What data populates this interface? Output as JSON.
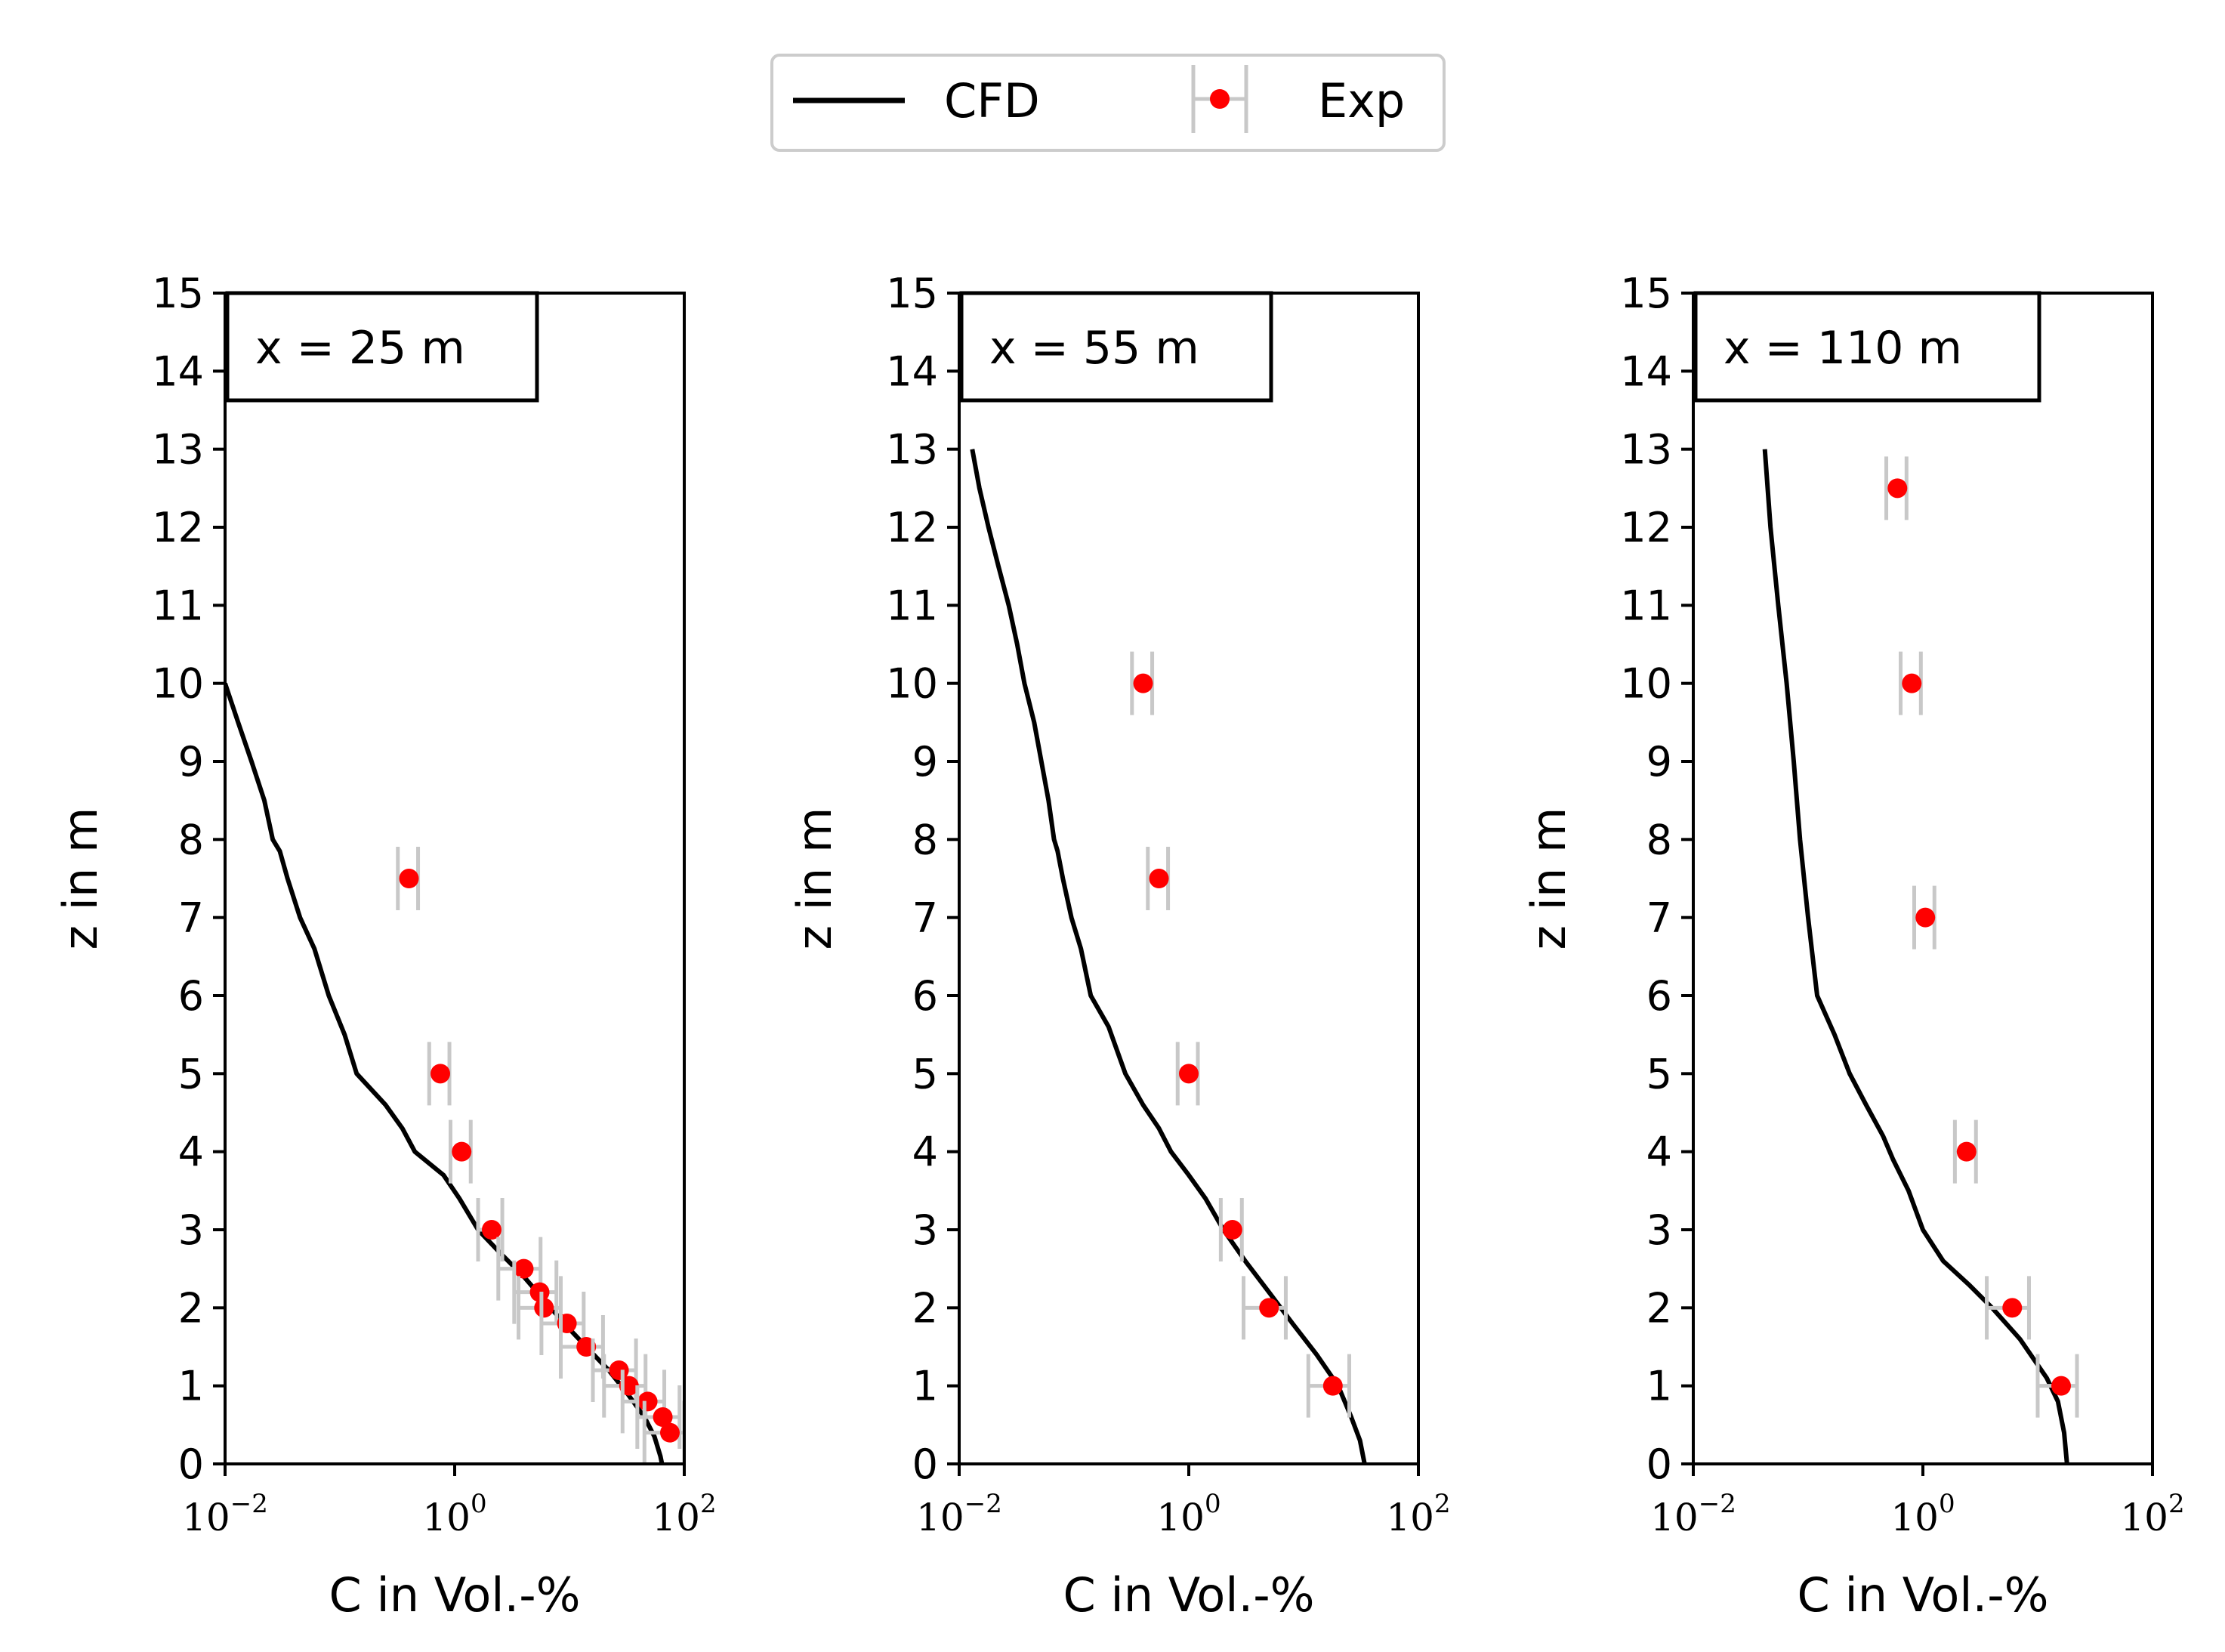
{
  "colors": {
    "cfd": "#000000",
    "exp": "#ff0000",
    "errorbar": "#c8c8c8"
  },
  "legend": {
    "placement": "top-center",
    "entries": [
      {
        "label": "CFD",
        "style": "line"
      },
      {
        "label": "Exp",
        "style": "marker-errorbar"
      }
    ]
  },
  "chart_data": [
    {
      "type": "line",
      "annotation": "x = 25 m",
      "xlabel": "C in Vol.-%",
      "ylabel": "z in m",
      "xscale": "log",
      "xlim": [
        0.01,
        100
      ],
      "ylim": [
        0,
        15
      ],
      "xticks": [
        {
          "value": 0.01,
          "base": "10",
          "exp": "−2"
        },
        {
          "value": 1,
          "base": "10",
          "exp": "0"
        },
        {
          "value": 100,
          "base": "10",
          "exp": "2"
        }
      ],
      "yticks": [
        "0",
        "1",
        "2",
        "3",
        "4",
        "5",
        "6",
        "7",
        "8",
        "9",
        "10",
        "11",
        "12",
        "13",
        "14",
        "15"
      ],
      "series": [
        {
          "name": "CFD",
          "kind": "line",
          "points": [
            [
              0.01,
              10
            ],
            [
              0.013,
              9.5
            ],
            [
              0.017,
              9
            ],
            [
              0.022,
              8.5
            ],
            [
              0.026,
              8
            ],
            [
              0.03,
              7.85
            ],
            [
              0.035,
              7.5
            ],
            [
              0.045,
              7
            ],
            [
              0.06,
              6.6
            ],
            [
              0.08,
              6
            ],
            [
              0.11,
              5.5
            ],
            [
              0.14,
              5
            ],
            [
              0.25,
              4.6
            ],
            [
              0.35,
              4.3
            ],
            [
              0.45,
              4
            ],
            [
              0.8,
              3.7
            ],
            [
              1.1,
              3.4
            ],
            [
              1.6,
              3
            ],
            [
              2.5,
              2.7
            ],
            [
              4,
              2.4
            ],
            [
              6,
              2.1
            ],
            [
              9,
              1.8
            ],
            [
              14,
              1.5
            ],
            [
              22,
              1.2
            ],
            [
              32,
              0.9
            ],
            [
              45,
              0.6
            ],
            [
              55,
              0.35
            ],
            [
              62,
              0.1
            ],
            [
              64,
              0
            ]
          ]
        },
        {
          "name": "Exp",
          "kind": "scatter-errorbar",
          "points": [
            {
              "x": 0.4,
              "y": 7.5,
              "lo": 0.32,
              "hi": 0.48
            },
            {
              "x": 0.75,
              "y": 5,
              "lo": 0.6,
              "hi": 0.9
            },
            {
              "x": 1.15,
              "y": 4,
              "lo": 0.92,
              "hi": 1.38
            },
            {
              "x": 2.1,
              "y": 3,
              "lo": 1.6,
              "hi": 2.6
            },
            {
              "x": 4,
              "y": 2.5,
              "lo": 2.4,
              "hi": 5.6
            },
            {
              "x": 5.5,
              "y": 2.2,
              "lo": 3.3,
              "hi": 7.7
            },
            {
              "x": 6,
              "y": 2,
              "lo": 3.6,
              "hi": 8.4
            },
            {
              "x": 9.5,
              "y": 1.8,
              "lo": 5.7,
              "hi": 13.3
            },
            {
              "x": 14,
              "y": 1.5,
              "lo": 8.4,
              "hi": 19.6
            },
            {
              "x": 27,
              "y": 1.2,
              "lo": 16,
              "hi": 38
            },
            {
              "x": 33,
              "y": 1,
              "lo": 20,
              "hi": 46
            },
            {
              "x": 48,
              "y": 0.8,
              "lo": 29,
              "hi": 67
            },
            {
              "x": 65,
              "y": 0.6,
              "lo": 39,
              "hi": 91
            },
            {
              "x": 75,
              "y": 0.4,
              "lo": 45,
              "hi": 100
            }
          ]
        }
      ]
    },
    {
      "type": "line",
      "annotation": "x = 55 m",
      "xlabel": "C in Vol.-%",
      "ylabel": "z in m",
      "xscale": "log",
      "xlim": [
        0.01,
        100
      ],
      "ylim": [
        0,
        15
      ],
      "xticks": [
        {
          "value": 0.01,
          "base": "10",
          "exp": "−2"
        },
        {
          "value": 1,
          "base": "10",
          "exp": "0"
        },
        {
          "value": 100,
          "base": "10",
          "exp": "2"
        }
      ],
      "yticks": [
        "0",
        "1",
        "2",
        "3",
        "4",
        "5",
        "6",
        "7",
        "8",
        "9",
        "10",
        "11",
        "12",
        "13",
        "14",
        "15"
      ],
      "series": [
        {
          "name": "CFD",
          "kind": "line",
          "points": [
            [
              0.013,
              13
            ],
            [
              0.015,
              12.5
            ],
            [
              0.018,
              12
            ],
            [
              0.022,
              11.5
            ],
            [
              0.027,
              11
            ],
            [
              0.032,
              10.5
            ],
            [
              0.037,
              10
            ],
            [
              0.045,
              9.5
            ],
            [
              0.052,
              9
            ],
            [
              0.06,
              8.5
            ],
            [
              0.067,
              8
            ],
            [
              0.072,
              7.85
            ],
            [
              0.08,
              7.5
            ],
            [
              0.095,
              7
            ],
            [
              0.115,
              6.6
            ],
            [
              0.14,
              6
            ],
            [
              0.2,
              5.6
            ],
            [
              0.28,
              5
            ],
            [
              0.4,
              4.6
            ],
            [
              0.55,
              4.3
            ],
            [
              0.7,
              4
            ],
            [
              1,
              3.7
            ],
            [
              1.4,
              3.4
            ],
            [
              2,
              3
            ],
            [
              3.1,
              2.6
            ],
            [
              5,
              2.2
            ],
            [
              8,
              1.8
            ],
            [
              13,
              1.4
            ],
            [
              20,
              1
            ],
            [
              26,
              0.6
            ],
            [
              31,
              0.3
            ],
            [
              34,
              0
            ]
          ]
        },
        {
          "name": "Exp",
          "kind": "scatter-errorbar",
          "points": [
            {
              "x": 0.4,
              "y": 10,
              "lo": 0.32,
              "hi": 0.48
            },
            {
              "x": 0.55,
              "y": 7.5,
              "lo": 0.44,
              "hi": 0.66
            },
            {
              "x": 1,
              "y": 5,
              "lo": 0.8,
              "hi": 1.2
            },
            {
              "x": 2.4,
              "y": 3,
              "lo": 1.9,
              "hi": 2.9
            },
            {
              "x": 5,
              "y": 2,
              "lo": 3,
              "hi": 7
            },
            {
              "x": 18,
              "y": 1,
              "lo": 11,
              "hi": 25
            }
          ]
        }
      ]
    },
    {
      "type": "line",
      "annotation": "x = 110 m",
      "xlabel": "C in Vol.-%",
      "ylabel": "z in m",
      "xscale": "log",
      "xlim": [
        0.01,
        100
      ],
      "ylim": [
        0,
        15
      ],
      "xticks": [
        {
          "value": 0.01,
          "base": "10",
          "exp": "−2"
        },
        {
          "value": 1,
          "base": "10",
          "exp": "0"
        },
        {
          "value": 100,
          "base": "10",
          "exp": "2"
        }
      ],
      "yticks": [
        "0",
        "1",
        "2",
        "3",
        "4",
        "5",
        "6",
        "7",
        "8",
        "9",
        "10",
        "11",
        "12",
        "13",
        "14",
        "15"
      ],
      "series": [
        {
          "name": "CFD",
          "kind": "line",
          "points": [
            [
              0.042,
              13
            ],
            [
              0.047,
              12
            ],
            [
              0.055,
              11
            ],
            [
              0.065,
              10
            ],
            [
              0.075,
              9
            ],
            [
              0.085,
              8
            ],
            [
              0.1,
              7
            ],
            [
              0.12,
              6
            ],
            [
              0.17,
              5.5
            ],
            [
              0.23,
              5
            ],
            [
              0.32,
              4.6
            ],
            [
              0.45,
              4.2
            ],
            [
              0.55,
              3.9
            ],
            [
              0.75,
              3.5
            ],
            [
              1,
              3
            ],
            [
              1.5,
              2.6
            ],
            [
              2.5,
              2.3
            ],
            [
              4,
              2
            ],
            [
              7,
              1.6
            ],
            [
              12,
              1.1
            ],
            [
              15,
              0.8
            ],
            [
              17,
              0.4
            ],
            [
              18,
              0
            ]
          ]
        },
        {
          "name": "Exp",
          "kind": "scatter-errorbar",
          "points": [
            {
              "x": 0.6,
              "y": 12.5,
              "lo": 0.48,
              "hi": 0.72
            },
            {
              "x": 0.8,
              "y": 10,
              "lo": 0.64,
              "hi": 0.96
            },
            {
              "x": 1.05,
              "y": 7,
              "lo": 0.84,
              "hi": 1.26
            },
            {
              "x": 2.4,
              "y": 4,
              "lo": 1.9,
              "hi": 2.9
            },
            {
              "x": 6,
              "y": 2,
              "lo": 3.6,
              "hi": 8.4
            },
            {
              "x": 16,
              "y": 1,
              "lo": 10,
              "hi": 22
            }
          ]
        }
      ]
    }
  ]
}
